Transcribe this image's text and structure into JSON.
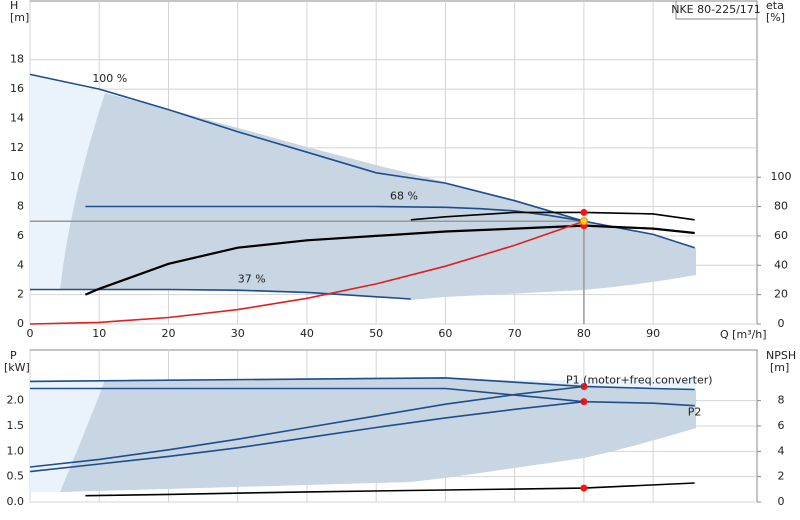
{
  "chart_data": [
    {
      "type": "line",
      "title": "NKE 80-225/171",
      "x_label": "Q [m³/h]",
      "y_label": "H",
      "y_unit": "[m]",
      "y2_label": "eta",
      "y2_unit": "[%]",
      "xlim": [
        0,
        105
      ],
      "ylim": [
        0,
        22
      ],
      "y2lim": [
        0,
        220
      ],
      "xticks": [
        0,
        10,
        20,
        30,
        40,
        50,
        60,
        70,
        80,
        90
      ],
      "yticks": [
        0,
        2,
        4,
        6,
        8,
        10,
        12,
        14,
        16,
        18
      ],
      "y2ticks": [
        0,
        20,
        40,
        60,
        80,
        100
      ],
      "grid": true,
      "duty_point": {
        "x": 80,
        "y": 7.0
      },
      "series": [
        {
          "name": "100 %",
          "color": "#1f4e8c",
          "x": [
            0,
            10,
            20,
            30,
            40,
            50,
            60,
            70,
            80,
            90,
            96
          ],
          "values": [
            17.0,
            16.0,
            14.6,
            13.1,
            11.7,
            10.3,
            9.6,
            8.4,
            7.0,
            6.1,
            5.2
          ]
        },
        {
          "name": "68 %",
          "color": "#1f4e8c",
          "x": [
            8,
            20,
            30,
            40,
            50,
            60,
            65,
            70,
            75,
            80
          ],
          "values": [
            8,
            8,
            8,
            8,
            8,
            7.95,
            7.85,
            7.7,
            7.4,
            7.0
          ]
        },
        {
          "name": "37 %",
          "color": "#1f4e8c",
          "x": [
            0,
            10,
            20,
            30,
            40,
            45,
            50,
            55
          ],
          "values": [
            2.35,
            2.35,
            2.35,
            2.3,
            2.15,
            2.0,
            1.85,
            1.7
          ]
        },
        {
          "color": "#000000",
          "axis": "y2",
          "x": [
            8,
            10,
            20,
            30,
            40,
            50,
            60,
            70,
            80,
            90,
            96
          ],
          "values": [
            20,
            24,
            41,
            52,
            57,
            60,
            63,
            65,
            67,
            65,
            62
          ],
          "markers": [
            80
          ]
        },
        {
          "color": "#000000",
          "axis": "y2",
          "x": [
            55,
            60,
            70,
            80,
            90,
            96
          ],
          "values": [
            71,
            73,
            76,
            76,
            75,
            71
          ],
          "markers": [
            80
          ]
        },
        {
          "color": "#e02020",
          "x": [
            0,
            10,
            20,
            30,
            40,
            50,
            60,
            70,
            80
          ],
          "values": [
            0,
            0.11,
            0.44,
            0.98,
            1.75,
            2.73,
            3.94,
            5.36,
            7.0
          ]
        }
      ]
    },
    {
      "type": "line",
      "y_label": "P",
      "y_unit": "[kW]",
      "y2_label": "NPSH",
      "y2_unit": "[m]",
      "xlim": [
        0,
        105
      ],
      "ylim": [
        0,
        3
      ],
      "y2lim": [
        0,
        12
      ],
      "yticks": [
        {
          "value": 0,
          "label": "0.0"
        },
        {
          "value": 0.5,
          "label": "0.5"
        },
        {
          "value": 1,
          "label": "1.0"
        },
        {
          "value": 1.5,
          "label": "1.5"
        },
        {
          "value": 2,
          "label": "2.0"
        }
      ],
      "y2ticks": [
        0,
        2,
        4,
        6,
        8
      ],
      "grid": true,
      "series": [
        {
          "name": "P1 (motor+freq.converter)",
          "color": "#1f4e8c",
          "x": [
            0,
            10,
            20,
            30,
            40,
            50,
            60,
            70,
            80,
            90,
            96
          ],
          "values": [
            0.69,
            0.84,
            1.03,
            1.24,
            1.47,
            1.7,
            1.93,
            2.12,
            2.28,
            2.24,
            2.22
          ],
          "markers": [
            80
          ]
        },
        {
          "name": "P2",
          "color": "#1f4e8c",
          "x": [
            0,
            10,
            20,
            30,
            40,
            50,
            60,
            70,
            80,
            90,
            96
          ],
          "values": [
            0.6,
            0.75,
            0.9,
            1.07,
            1.27,
            1.47,
            1.66,
            1.83,
            1.98,
            1.95,
            1.9
          ],
          "markers": [
            80
          ]
        },
        {
          "color": "#1f4e8c",
          "x": [
            0,
            60,
            80
          ],
          "values": [
            2.38,
            2.45,
            2.28
          ]
        },
        {
          "color": "#1f4e8c",
          "x": [
            0,
            60,
            80
          ],
          "values": [
            2.24,
            2.24,
            1.98
          ]
        },
        {
          "color": "#000000",
          "axis": "y2",
          "x": [
            8,
            20,
            40,
            60,
            80,
            96
          ],
          "values": [
            0.5,
            0.6,
            0.8,
            0.95,
            1.1,
            1.5
          ],
          "markers": [
            80
          ]
        }
      ]
    }
  ]
}
